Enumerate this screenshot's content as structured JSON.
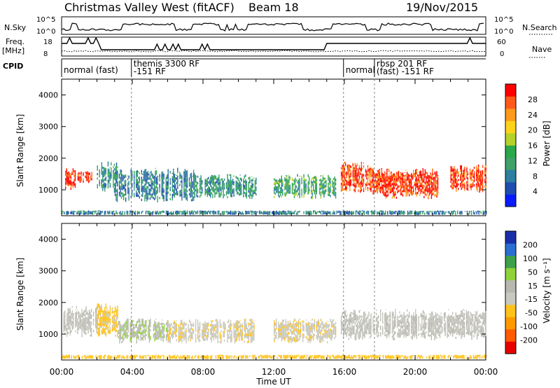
{
  "header": {
    "station": "Christmas Valley West (fitACF)",
    "beam": "Beam 18",
    "date": "19/Nov/2015"
  },
  "strip_labels": {
    "nsky": "N.Sky",
    "nsky_ticks": [
      "10^5",
      "10^0"
    ],
    "nsearch": "N.Search",
    "nsearch_ticks": [
      "10^5",
      "10^0"
    ],
    "freq_line1": "Freq.",
    "freq_line2": "[MHz]",
    "freq_ticks": [
      "18",
      "8"
    ],
    "nave": "Nave",
    "nave_ticks": [
      "60",
      "0"
    ],
    "cpid": "CPID"
  },
  "cpid_segments": [
    {
      "line1": "normal (fast)",
      "line2": "",
      "start_hour": 0.0,
      "end_hour": 3.95
    },
    {
      "line1": "themis 3300 RF",
      "line2": "-151 RF",
      "start_hour": 3.95,
      "end_hour": 15.95
    },
    {
      "line1": "normal",
      "line2": "",
      "start_hour": 15.95,
      "end_hour": 17.7
    },
    {
      "line1": "rbsp 201 RF",
      "line2": "(fast) -151 RF",
      "start_hour": 17.7,
      "end_hour": 24.0
    }
  ],
  "colors": {
    "power_scale": [
      "#0a1cff",
      "#1f4eb0",
      "#2e7fa0",
      "#3fa06a",
      "#2aa84a",
      "#b4d22a",
      "#ffd21a",
      "#ff9a1a",
      "#ff5a1a",
      "#ff0000"
    ],
    "velocity_scale": [
      "#e60000",
      "#ff5a00",
      "#ff9a00",
      "#ffc21a",
      "#c8c8c0",
      "#b8b8b0",
      "#8fd23a",
      "#3fa04a",
      "#2a6ed2",
      "#1a2ea8"
    ],
    "ground_scatter": "#b0b0a8"
  },
  "chart_data": [
    {
      "type": "heatmap",
      "name": "power",
      "xlabel": "Time UT",
      "ylabel": "Slant Range [km]",
      "xlim": [
        0,
        24
      ],
      "ylim": [
        180,
        4500
      ],
      "x_ticks": [
        "00:00",
        "04:00",
        "08:00",
        "12:00",
        "16:00",
        "20:00",
        "00:00"
      ],
      "y_ticks": [
        1000,
        2000,
        3000,
        4000
      ],
      "colorbar": {
        "label": "Power [dB]",
        "ticks": [
          "28",
          "24",
          "20",
          "16",
          "12",
          "8",
          "4"
        ],
        "range": [
          0,
          30
        ]
      },
      "cpid_boundaries_hour": [
        3.95,
        15.95,
        17.7
      ],
      "regions": [
        {
          "t0": 0.2,
          "t1": 0.8,
          "r0": 1000,
          "r1": 1700,
          "level": 28
        },
        {
          "t0": 0.9,
          "t1": 1.7,
          "r0": 1200,
          "r1": 1600,
          "level": 28
        },
        {
          "t0": 2.0,
          "t1": 3.2,
          "r0": 900,
          "r1": 1900,
          "level": 10
        },
        {
          "t0": 3.0,
          "t1": 7.5,
          "r0": 600,
          "r1": 1700,
          "level": 8
        },
        {
          "t0": 7.5,
          "t1": 11.0,
          "r0": 700,
          "r1": 1500,
          "level": 10
        },
        {
          "t0": 12.0,
          "t1": 15.5,
          "r0": 700,
          "r1": 1500,
          "level": 12
        },
        {
          "t0": 15.8,
          "t1": 17.6,
          "r0": 900,
          "r1": 1900,
          "level": 26
        },
        {
          "t0": 17.6,
          "t1": 21.3,
          "r0": 700,
          "r1": 1700,
          "level": 27
        },
        {
          "t0": 22.0,
          "t1": 24.0,
          "r0": 900,
          "r1": 1800,
          "level": 26
        },
        {
          "t0": 0.0,
          "t1": 24.0,
          "r0": 200,
          "r1": 350,
          "level": 8
        }
      ]
    },
    {
      "type": "heatmap",
      "name": "velocity",
      "xlabel": "Time UT",
      "ylabel": "Slant Range [km]",
      "xlim": [
        0,
        24
      ],
      "ylim": [
        180,
        4500
      ],
      "x_ticks": [
        "00:00",
        "04:00",
        "08:00",
        "12:00",
        "16:00",
        "20:00",
        "00:00"
      ],
      "y_ticks": [
        1000,
        2000,
        3000,
        4000
      ],
      "colorbar": {
        "label": "Velocity [m s⁻¹]",
        "ticks": [
          "200",
          "100",
          "50",
          "15",
          "-15",
          "-50",
          "-100",
          "-200"
        ],
        "range": [
          -250,
          250
        ]
      },
      "cpid_boundaries_hour": [
        3.95,
        15.95,
        17.7
      ],
      "regions": [
        {
          "t0": 0.1,
          "t1": 2.0,
          "r0": 900,
          "r1": 1900,
          "level": 0
        },
        {
          "t0": 2.0,
          "t1": 3.2,
          "r0": 900,
          "r1": 2000,
          "level": -60
        },
        {
          "t0": 3.2,
          "t1": 6.0,
          "r0": 700,
          "r1": 1500,
          "level": 40
        },
        {
          "t0": 6.0,
          "t1": 11.0,
          "r0": 700,
          "r1": 1500,
          "level": -40
        },
        {
          "t0": 12.0,
          "t1": 15.5,
          "r0": 700,
          "r1": 1500,
          "level": -40
        },
        {
          "t0": 15.8,
          "t1": 24.0,
          "r0": 800,
          "r1": 1800,
          "level": 0
        },
        {
          "t0": 0.0,
          "t1": 24.0,
          "r0": 200,
          "r1": 350,
          "level": -80
        }
      ]
    }
  ]
}
